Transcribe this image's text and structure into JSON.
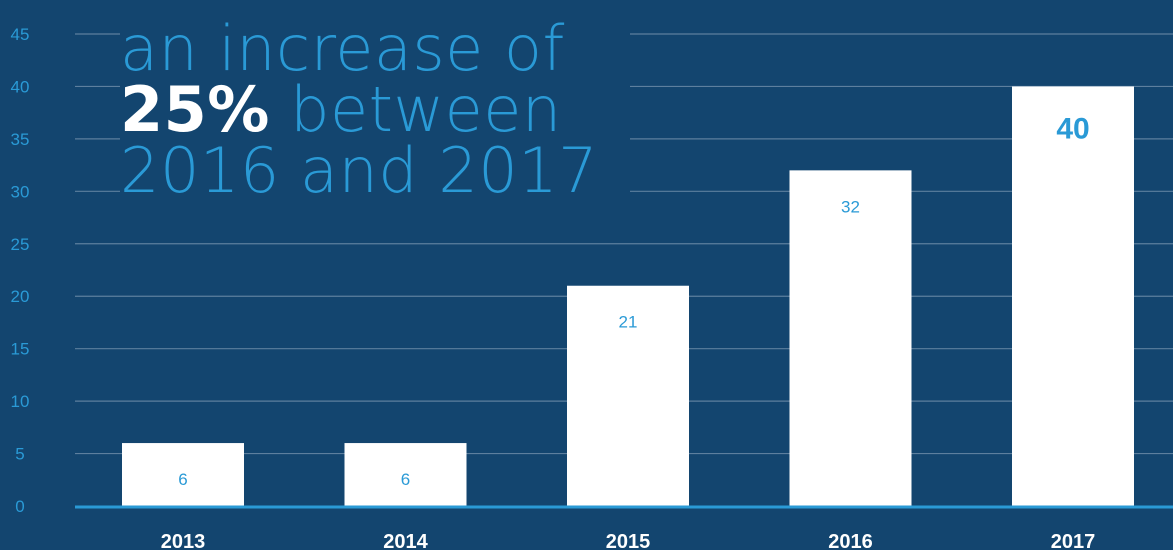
{
  "colors": {
    "background": "#13456f",
    "accent": "#2a9ad6",
    "bar": "#ffffff",
    "gridline": "#5d7f9e",
    "axis_line": "#2a9ad6"
  },
  "headline": {
    "line1": "an increase of",
    "line2_strong": "25%",
    "line2_rest": " between",
    "line3": "2016 and 2017"
  },
  "chart_data": {
    "type": "bar",
    "categories": [
      "2013",
      "2014",
      "2015",
      "2016",
      "2017"
    ],
    "values": [
      6,
      6,
      21,
      32,
      40
    ],
    "ylim": [
      0,
      45
    ],
    "yticks": [
      0,
      5,
      10,
      15,
      20,
      25,
      30,
      35,
      40,
      45
    ],
    "grid": true,
    "legend": "none"
  }
}
